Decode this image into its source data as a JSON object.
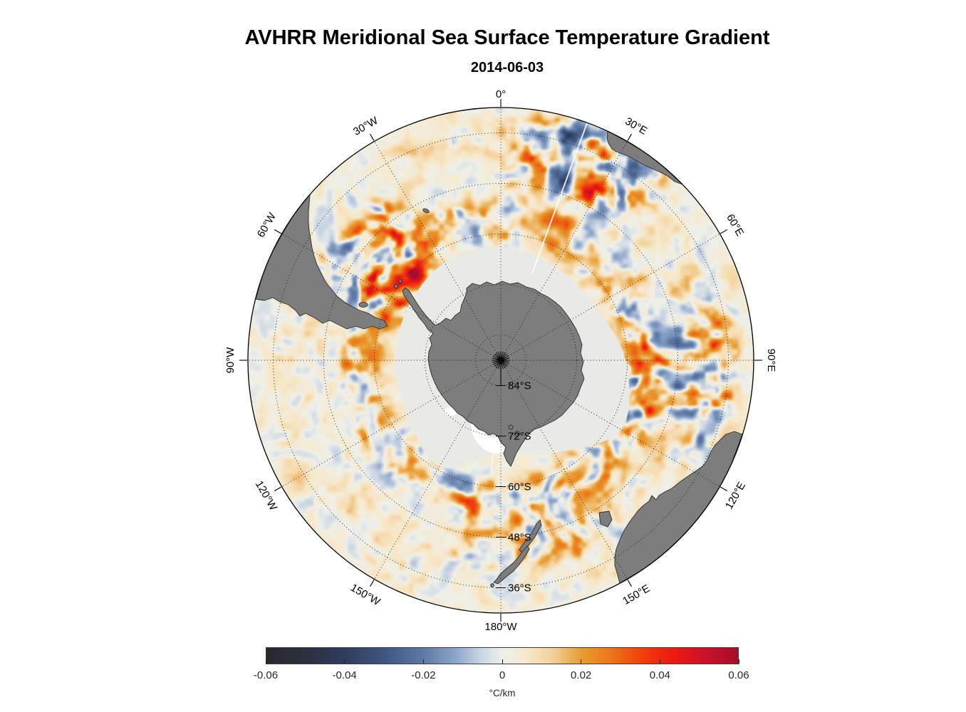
{
  "title": {
    "text": "AVHRR Meridional Sea Surface Temperature Gradient",
    "date": "2014-06-03"
  },
  "map": {
    "projection": "south-polar-stereographic",
    "outer_latitude_deg_s": 30,
    "lon_labels": [
      {
        "label": "0°",
        "az": 0
      },
      {
        "label": "30°E",
        "az": 30
      },
      {
        "label": "60°E",
        "az": 60
      },
      {
        "label": "90°E",
        "az": 90
      },
      {
        "label": "120°E",
        "az": 120
      },
      {
        "label": "150°E",
        "az": 150
      },
      {
        "label": "180°W",
        "az": 180
      },
      {
        "label": "150°W",
        "az": -150
      },
      {
        "label": "120°W",
        "az": -120
      },
      {
        "label": "90°W",
        "az": -90
      },
      {
        "label": "60°W",
        "az": -60
      },
      {
        "label": "30°W",
        "az": -30
      }
    ],
    "lat_labels": [
      {
        "label": "84°S",
        "lat": 84
      },
      {
        "label": "72°S",
        "lat": 72
      },
      {
        "label": "60°S",
        "lat": 60
      },
      {
        "label": "48°S",
        "lat": 48
      },
      {
        "label": "36°S",
        "lat": 36
      }
    ],
    "colors": {
      "land": "#7d7d7d",
      "land_outline": "#2d2d2d",
      "ice": "#e9e9e6",
      "graticule": "#141414",
      "background": "#ffffff"
    }
  },
  "colorbar": {
    "unit": "°C/km",
    "min": -0.06,
    "max": 0.06,
    "ticks": [
      {
        "value": -0.06,
        "label": "-0.06"
      },
      {
        "value": -0.04,
        "label": "-0.04"
      },
      {
        "value": -0.02,
        "label": "-0.02"
      },
      {
        "value": 0,
        "label": "0"
      },
      {
        "value": 0.02,
        "label": "0.02"
      },
      {
        "value": 0.04,
        "label": "0.04"
      },
      {
        "value": 0.06,
        "label": "0.06"
      }
    ],
    "stops": [
      {
        "t": -0.06,
        "color": "#28282e"
      },
      {
        "t": -0.05,
        "color": "#2b2f3f"
      },
      {
        "t": -0.04,
        "color": "#2e3d5e"
      },
      {
        "t": -0.03,
        "color": "#3e5681"
      },
      {
        "t": -0.02,
        "color": "#5d79a5"
      },
      {
        "t": -0.012,
        "color": "#8ba4c8"
      },
      {
        "t": -0.005,
        "color": "#cdd8e5"
      },
      {
        "t": 0.0,
        "color": "#eef0e9"
      },
      {
        "t": 0.006,
        "color": "#f7e9cd"
      },
      {
        "t": 0.012,
        "color": "#f4d5a2"
      },
      {
        "t": 0.02,
        "color": "#e89e33"
      },
      {
        "t": 0.028,
        "color": "#ec7318"
      },
      {
        "t": 0.036,
        "color": "#f13c0e"
      },
      {
        "t": 0.043,
        "color": "#ee1a10"
      },
      {
        "t": 0.051,
        "color": "#cd1226"
      },
      {
        "t": 0.06,
        "color": "#a60e2c"
      }
    ]
  }
}
